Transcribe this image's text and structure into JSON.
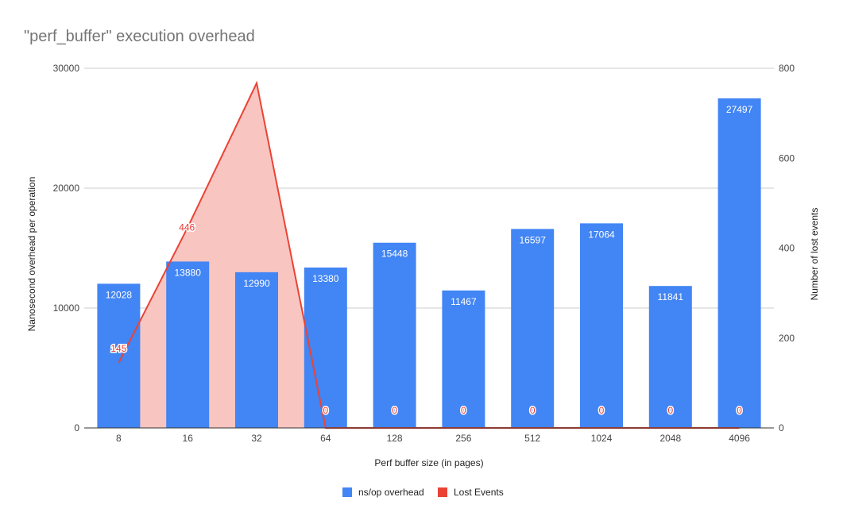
{
  "chart_data": {
    "type": "bar",
    "title": "\"perf_buffer\" execution overhead",
    "xlabel": "Perf buffer size (in pages)",
    "ylabel": "Nanosecond overhead per operation",
    "y2label": "Number of lost events",
    "categories": [
      "8",
      "16",
      "32",
      "64",
      "128",
      "256",
      "512",
      "1024",
      "2048",
      "4096"
    ],
    "ylim": [
      0,
      30000
    ],
    "yticks": [
      "0",
      "10000",
      "20000",
      "30000"
    ],
    "y2lim": [
      0,
      800
    ],
    "y2ticks": [
      "0",
      "200",
      "400",
      "600",
      "800"
    ],
    "grid": true,
    "legend_position": "bottom",
    "series": [
      {
        "name": "ns/op overhead",
        "type": "bar",
        "axis": "left",
        "color": "#4285f4",
        "values": [
          12028,
          13880,
          12990,
          13380,
          15448,
          11467,
          16597,
          17064,
          11841,
          27497
        ]
      },
      {
        "name": "Lost Events",
        "type": "area",
        "axis": "right",
        "color": "#ea4335",
        "fill": "#f8c5c1",
        "values": [
          145,
          446,
          767,
          0,
          0,
          0,
          0,
          0,
          0,
          0
        ],
        "point_labels": [
          "145",
          "446",
          "",
          "0",
          "0",
          "0",
          "0",
          "0",
          "0",
          "0"
        ]
      }
    ]
  }
}
